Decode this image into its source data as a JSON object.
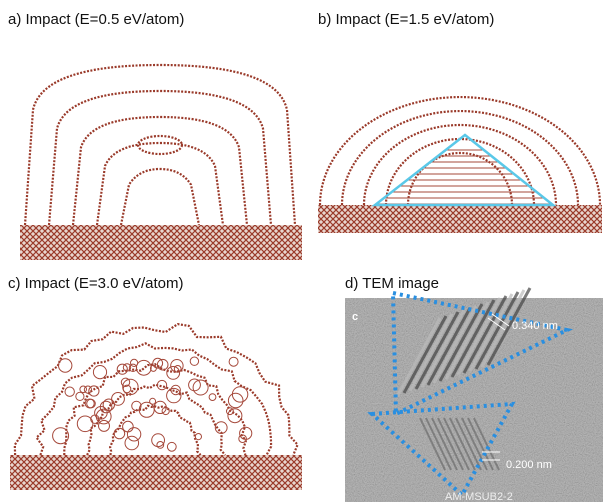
{
  "panels": [
    {
      "label": "a) Impact (E=0.5 eV/atom)"
    },
    {
      "label": "b) Impact (E=1.5 eV/atom)"
    },
    {
      "label": "c) Impact (E=3.0 eV/atom)"
    },
    {
      "label": "d) TEM image"
    }
  ],
  "tem": {
    "corner_label": "c",
    "annotations": [
      "0.340 nm",
      "0.200 nm"
    ],
    "sample_id": "AM-MSUB2-2"
  }
}
